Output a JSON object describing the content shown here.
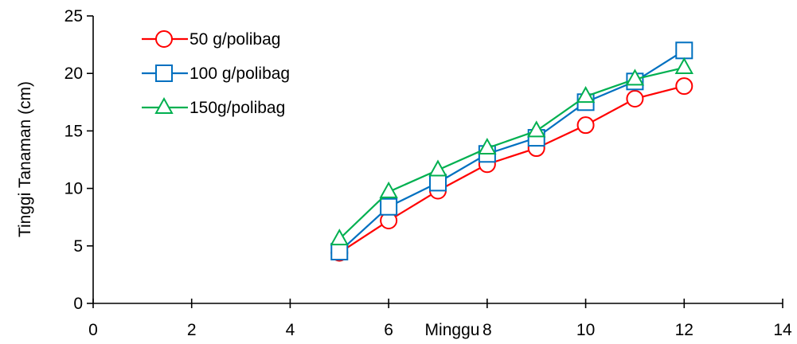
{
  "chart_data": {
    "type": "line",
    "title": "",
    "xlabel": "Minggu",
    "ylabel": "Tinggi Tanaman (cm)",
    "xlim": [
      0,
      14
    ],
    "ylim": [
      0,
      25
    ],
    "x_ticks": [
      0,
      2,
      4,
      6,
      8,
      10,
      12,
      14
    ],
    "y_ticks": [
      0,
      5,
      10,
      15,
      20,
      25
    ],
    "grid": false,
    "legend_position": "top-left",
    "series": [
      {
        "name": "50 g/polibag",
        "color": "#ff0000",
        "marker": "circle",
        "x": [
          5,
          6,
          7,
          8,
          9,
          10,
          11,
          12
        ],
        "y": [
          4.4,
          7.2,
          9.8,
          12.1,
          13.5,
          15.5,
          17.8,
          18.9
        ]
      },
      {
        "name": "100 g/polibag",
        "color": "#0070c0",
        "marker": "square",
        "x": [
          5,
          6,
          7,
          8,
          9,
          10,
          11,
          12
        ],
        "y": [
          4.5,
          8.4,
          10.5,
          13.0,
          14.4,
          17.5,
          19.3,
          22.0
        ]
      },
      {
        "name": "150g/polibag",
        "color": "#00b050",
        "marker": "triangle",
        "x": [
          5,
          6,
          7,
          8,
          9,
          10,
          11,
          12
        ],
        "y": [
          5.6,
          9.7,
          11.6,
          13.5,
          15.0,
          18.0,
          19.5,
          20.5
        ]
      }
    ]
  }
}
